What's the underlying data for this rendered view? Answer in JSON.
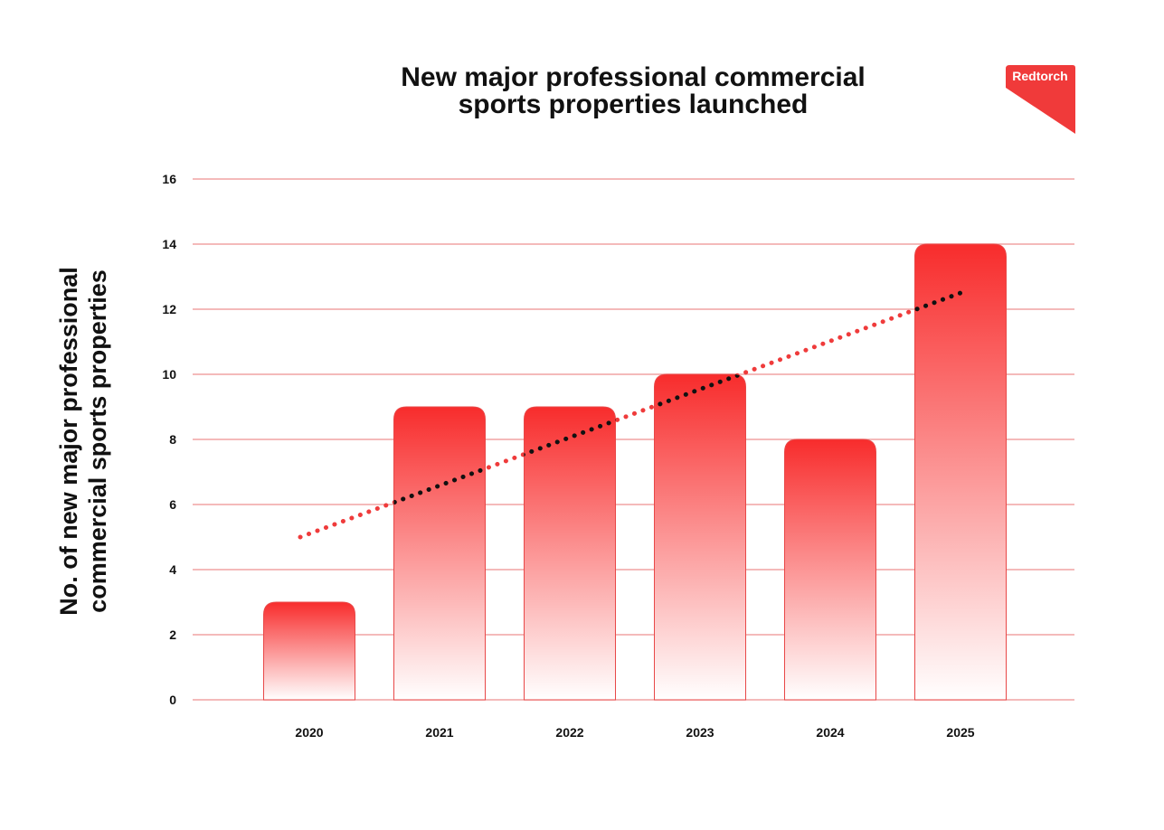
{
  "chart_data": {
    "type": "bar",
    "title_lines": [
      "New major professional commercial",
      "sports properties launched"
    ],
    "ylabel_lines": [
      "No. of new major professional",
      "commercial sports properties"
    ],
    "xlabel": "",
    "categories": [
      "2020",
      "2021",
      "2022",
      "2023",
      "2024",
      "2025"
    ],
    "values": [
      3,
      9,
      9,
      10,
      8,
      14
    ],
    "ylim": [
      0,
      16
    ],
    "yticks": [
      "0",
      "2",
      "4",
      "6",
      "8",
      "10",
      "12",
      "14",
      "16"
    ],
    "grid": true,
    "trendline": {
      "style": "dotted",
      "start_value": 5,
      "end_value": 12.5
    },
    "colors": {
      "bar_top": "#f82c2c",
      "bar_bottom": "#ffffff",
      "bar_edge": "#e84848",
      "grid": "#f0a3a3",
      "trend_outside": "#ef3b3b",
      "trend_inside": "#111111",
      "logo": "#f03a3a"
    }
  },
  "logo": {
    "text": "Redtorch"
  }
}
